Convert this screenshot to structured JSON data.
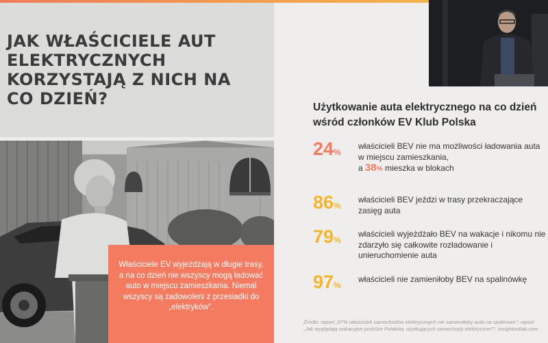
{
  "title": "JAK WŁAŚCICIELE AUT ELEKTRYCZNYCH KORZYSTAJĄ Z NICH NA CO DZIEŃ?",
  "callout": "Właściciele EV wyjeżdżają w długie trasy, a na co dzień nie wszyscy mogą ładować auto w miejscu zamieszkania. Niemal wszyscy są zadowoleni z przesiadki do „elektryków”.",
  "heading": "Użytkowanie auta elektrycznego na co dzień wśród członków EV Klub Polska",
  "stats": [
    {
      "value": "24",
      "unit": "%",
      "text": "właścicieli BEV nie ma możliwości ładowania auta w miejscu zamieszkania,",
      "extra_prefix": "a ",
      "extra_value": "38",
      "extra_unit": "%",
      "extra_text": " mieszka w blokach",
      "color": "#f47b5f"
    },
    {
      "value": "86",
      "unit": "%",
      "text": "właścicieli BEV jeździ w trasy przekraczające zasięg auta",
      "color": "#f6b42c"
    },
    {
      "value": "79",
      "unit": "%",
      "text": "właścicieli wyjeżdżało BEV na wakacje i nikomu nie zdarzyło się całkowite rozładowanie i unieruchomienie auta",
      "color": "#f6b42c"
    },
    {
      "value": "97",
      "unit": "%",
      "text": "właścicieli nie zamieniłoby BEV na spalinówkę",
      "color": "#f6b42c"
    }
  ],
  "source": "Źródło: raport „97% właścicieli samochodów elektrycznych nie zamieniłoby auta na spalinowe”; raport „Jak wyglądają wakacyjne podróże Polaków, użytkujących samochody elektryczne?”, insightoutlab.com",
  "colors": {
    "accent": "#f47b5f",
    "gold": "#f6b42c",
    "text": "#333333"
  },
  "icons": {
    "photo": "woman-with-electric-car-photo",
    "video": "presenter-video-feed"
  }
}
